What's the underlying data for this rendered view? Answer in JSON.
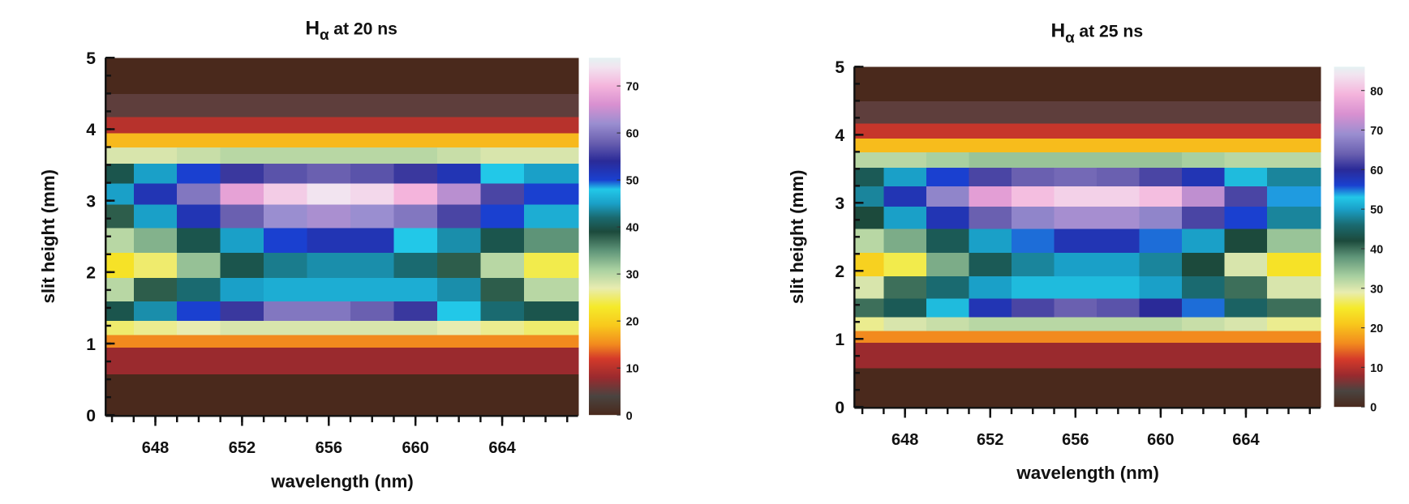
{
  "chart_data": [
    {
      "type": "contour",
      "title": "H",
      "title_subscript": "α",
      "title_suffix": "at 20 ns",
      "x_label": "wavelength (nm)",
      "y_label": "slit height (mm)",
      "xlim": [
        645.75,
        667.5
      ],
      "xticks": [
        648,
        652,
        656,
        660,
        664
      ],
      "ylim": [
        0,
        5
      ],
      "yticks": [
        0,
        1,
        2,
        3,
        4,
        5
      ],
      "clim": [
        0,
        76
      ],
      "cticks": [
        0,
        10,
        20,
        30,
        40,
        50,
        60,
        70
      ],
      "colorscale": [
        [
          0,
          "#4a291c"
        ],
        [
          4,
          "#4a4440"
        ],
        [
          8,
          "#9a2a2e"
        ],
        [
          12,
          "#d43a2a"
        ],
        [
          15,
          "#f28a1e"
        ],
        [
          19,
          "#f8c81c"
        ],
        [
          23,
          "#f5ea2a"
        ],
        [
          27,
          "#e8ecb0"
        ],
        [
          31,
          "#a8d0a0"
        ],
        [
          35,
          "#5e9478"
        ],
        [
          39,
          "#1c4a3c"
        ],
        [
          42,
          "#1a6a70"
        ],
        [
          45,
          "#1aa0c8"
        ],
        [
          48,
          "#22c8e8"
        ],
        [
          50,
          "#1a40d0"
        ],
        [
          54,
          "#2a2a98"
        ],
        [
          58,
          "#6a60b0"
        ],
        [
          62,
          "#9a8ed0"
        ],
        [
          66,
          "#d890d0"
        ],
        [
          70,
          "#f4b4dc"
        ],
        [
          74,
          "#f2e4f0"
        ],
        [
          86,
          "#e4f2f2"
        ]
      ],
      "x": [
        646,
        648,
        650,
        652,
        654,
        656,
        658,
        660,
        662,
        664,
        666
      ],
      "y": [
        0.3,
        0.85,
        1.05,
        1.2,
        1.45,
        1.75,
        2.1,
        2.45,
        2.8,
        3.1,
        3.4,
        3.65,
        3.85,
        4.05,
        4.3,
        4.7
      ],
      "z": [
        [
          0,
          0,
          0,
          0,
          0,
          0,
          0,
          0,
          0,
          0,
          0
        ],
        [
          8,
          8,
          8,
          8,
          8,
          8,
          8,
          8,
          8,
          8,
          8
        ],
        [
          15,
          15,
          15,
          15,
          15,
          15,
          15,
          15,
          15,
          15,
          15
        ],
        [
          25,
          26,
          27,
          28,
          28,
          28,
          28,
          28,
          27,
          26,
          25
        ],
        [
          40,
          44,
          50,
          55,
          60,
          60,
          58,
          55,
          48,
          42,
          40
        ],
        [
          30,
          38,
          42,
          45,
          46,
          46,
          46,
          46,
          44,
          38,
          30
        ],
        [
          22,
          25,
          32,
          40,
          43,
          44,
          44,
          42,
          38,
          30,
          24
        ],
        [
          30,
          33,
          40,
          45,
          50,
          52,
          52,
          48,
          44,
          40,
          35
        ],
        [
          38,
          45,
          52,
          58,
          62,
          63,
          62,
          60,
          56,
          50,
          46
        ],
        [
          45,
          52,
          60,
          68,
          72,
          74,
          73,
          70,
          64,
          56,
          50
        ],
        [
          40,
          45,
          50,
          55,
          57,
          58,
          57,
          55,
          52,
          48,
          45
        ],
        [
          28,
          28,
          29,
          30,
          30,
          30,
          30,
          30,
          29,
          28,
          28
        ],
        [
          18,
          18,
          18,
          18,
          18,
          18,
          18,
          18,
          18,
          18,
          18
        ],
        [
          10,
          10,
          10,
          10,
          10,
          10,
          10,
          10,
          10,
          10,
          10
        ],
        [
          5,
          5,
          5,
          5,
          5,
          5,
          5,
          5,
          5,
          5,
          5
        ],
        [
          0,
          0,
          0,
          0,
          0,
          0,
          0,
          0,
          0,
          0,
          0
        ]
      ]
    },
    {
      "type": "contour",
      "title": "H",
      "title_subscript": "α",
      "title_suffix": "at 25 ns",
      "x_label": "wavelength (nm)",
      "y_label": "slit height (mm)",
      "xlim": [
        645.67,
        667.5
      ],
      "xticks": [
        648,
        652,
        656,
        660,
        664
      ],
      "ylim": [
        0,
        5
      ],
      "yticks": [
        0,
        1,
        2,
        3,
        4,
        5
      ],
      "clim": [
        0,
        86
      ],
      "cticks": [
        0,
        10,
        20,
        30,
        40,
        50,
        60,
        70,
        80
      ],
      "colorscale": [
        [
          0,
          "#4a291c"
        ],
        [
          4,
          "#4a4440"
        ],
        [
          8,
          "#9a2a2e"
        ],
        [
          12,
          "#d43a2a"
        ],
        [
          16,
          "#f28a1e"
        ],
        [
          21,
          "#f8c81c"
        ],
        [
          25,
          "#f5ea2a"
        ],
        [
          29,
          "#e8ecb0"
        ],
        [
          33,
          "#a8d0a0"
        ],
        [
          38,
          "#5e9478"
        ],
        [
          42,
          "#1c4a3c"
        ],
        [
          46,
          "#1a6a70"
        ],
        [
          50,
          "#1aa0c8"
        ],
        [
          53,
          "#22c8e8"
        ],
        [
          56,
          "#1a40d0"
        ],
        [
          60,
          "#2a2a98"
        ],
        [
          64,
          "#6a60b0"
        ],
        [
          69,
          "#9a8ed0"
        ],
        [
          74,
          "#d890d0"
        ],
        [
          79,
          "#f4b4dc"
        ],
        [
          84,
          "#f2e4f0"
        ],
        [
          86,
          "#e4f2f2"
        ]
      ],
      "x": [
        646,
        648,
        650,
        652,
        654,
        656,
        658,
        660,
        662,
        664,
        666
      ],
      "y": [
        0.3,
        0.85,
        1.05,
        1.2,
        1.45,
        1.75,
        2.1,
        2.45,
        2.8,
        3.1,
        3.4,
        3.65,
        3.85,
        4.05,
        4.3,
        4.7
      ],
      "z": [
        [
          0,
          0,
          0,
          0,
          0,
          0,
          0,
          0,
          0,
          0,
          0
        ],
        [
          8,
          8,
          8,
          8,
          8,
          8,
          8,
          8,
          8,
          8,
          8
        ],
        [
          16,
          16,
          16,
          16,
          16,
          16,
          16,
          16,
          16,
          16,
          16
        ],
        [
          28,
          30,
          31,
          32,
          32,
          32,
          32,
          32,
          31,
          30,
          28
        ],
        [
          40,
          44,
          52,
          58,
          62,
          64,
          63,
          60,
          55,
          45,
          40
        ],
        [
          30,
          40,
          46,
          50,
          52,
          52,
          52,
          50,
          46,
          40,
          30
        ],
        [
          22,
          26,
          36,
          44,
          48,
          50,
          50,
          48,
          42,
          30,
          24
        ],
        [
          32,
          36,
          44,
          50,
          55,
          58,
          58,
          55,
          50,
          42,
          34
        ],
        [
          42,
          50,
          58,
          64,
          68,
          70,
          70,
          68,
          62,
          56,
          48
        ],
        [
          48,
          58,
          68,
          76,
          80,
          82,
          82,
          80,
          72,
          62,
          54
        ],
        [
          44,
          50,
          56,
          62,
          64,
          65,
          64,
          62,
          58,
          52,
          48
        ],
        [
          32,
          32,
          33,
          34,
          34,
          34,
          34,
          34,
          33,
          32,
          32
        ],
        [
          20,
          20,
          20,
          20,
          20,
          20,
          20,
          20,
          20,
          20,
          20
        ],
        [
          11,
          11,
          11,
          11,
          11,
          11,
          11,
          11,
          11,
          11,
          11
        ],
        [
          5,
          5,
          5,
          5,
          5,
          5,
          5,
          5,
          5,
          5,
          5
        ],
        [
          0,
          0,
          0,
          0,
          0,
          0,
          0,
          0,
          0,
          0,
          0
        ]
      ]
    }
  ]
}
